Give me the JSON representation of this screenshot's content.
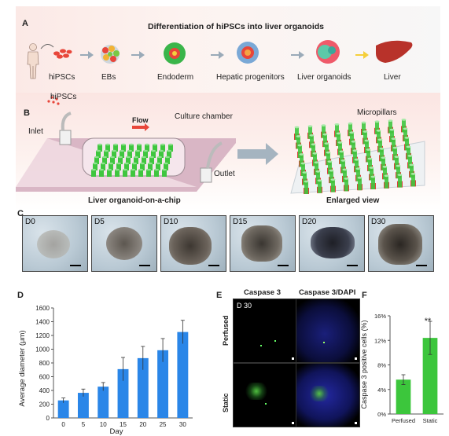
{
  "panelA": {
    "letter": "A",
    "title": "Differentiation of  hiPSCs into liver organoids",
    "stages": [
      "hiPSCs",
      "EBs",
      "Endoderm",
      "Hepatic progenitors",
      "Liver organoids",
      "Liver"
    ]
  },
  "panelB": {
    "letter": "B",
    "labels": {
      "hipscs": "hiPSCs",
      "flow": "Flow",
      "culture_chamber": "Culture chamber",
      "micropillars": "Micropillars",
      "inlet": "Inlet",
      "outlet": "Outlet",
      "chip_caption": "Liver organoid-on-a-chip",
      "enlarged_caption": "Enlarged view"
    },
    "colors": {
      "pillar_green": "#3fc63f",
      "pillar_red": "#d9443a",
      "chip_pink": "#e9c9d8"
    }
  },
  "panelC": {
    "letter": "C",
    "days": [
      "D0",
      "D5",
      "D10",
      "D15",
      "D20",
      "D30"
    ]
  },
  "panelD": {
    "letter": "D",
    "chart_data": {
      "type": "bar",
      "categories": [
        "0",
        "5",
        "10",
        "15",
        "20",
        "25",
        "30"
      ],
      "values": [
        255,
        365,
        455,
        710,
        870,
        985,
        1250
      ],
      "errors": [
        35,
        55,
        60,
        170,
        170,
        170,
        170
      ],
      "ylim": [
        0,
        1600
      ],
      "yticks": [
        "0",
        "200",
        "400",
        "600",
        "800",
        "1000",
        "1200",
        "1400",
        "1600"
      ],
      "xlabel": "Day",
      "ylabel": "Average diameter (μm)",
      "color": "#2a86e8"
    }
  },
  "panelE": {
    "letter": "E",
    "col_headers": [
      "Caspase 3",
      "Caspase 3/DAPI"
    ],
    "row_labels": [
      "Perfused",
      "Static"
    ],
    "day_label": "D 30"
  },
  "panelF": {
    "letter": "F",
    "chart_data": {
      "type": "bar",
      "categories": [
        "Perfused",
        "Static"
      ],
      "values": [
        5.6,
        12.4
      ],
      "errors": [
        0.8,
        2.7
      ],
      "ylim": [
        0,
        16
      ],
      "yticks": [
        "0%",
        "4%",
        "8%",
        "12%",
        "16%"
      ],
      "ylabel": "Caspase 3 positive cells (%)",
      "significance": "**",
      "color": "#3cc63c"
    }
  }
}
